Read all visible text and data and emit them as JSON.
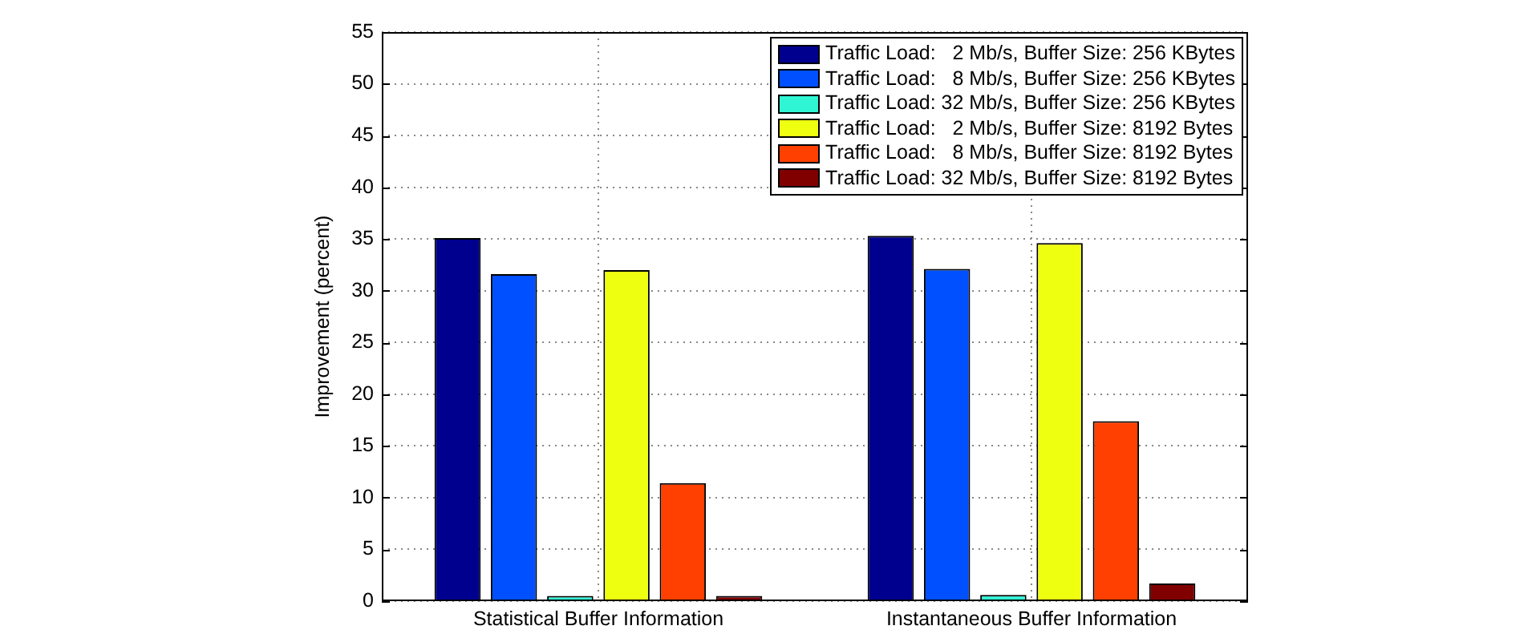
{
  "chart_data": {
    "type": "bar",
    "ylabel": "Improvement (percent)",
    "categories": [
      "Statistical Buffer Information",
      "Instantaneous Buffer Information"
    ],
    "series": [
      {
        "name": "Traffic Load:   2 Mb/s, Buffer Size: 256 KBytes",
        "color": "#00008f",
        "values": [
          35.1,
          35.3
        ]
      },
      {
        "name": "Traffic Load:   8 Mb/s, Buffer Size: 256 KBytes",
        "color": "#0050ff",
        "values": [
          31.6,
          32.1
        ]
      },
      {
        "name": "Traffic Load: 32 Mb/s, Buffer Size: 256 KBytes",
        "color": "#30f5d5",
        "values": [
          0.5,
          0.6
        ]
      },
      {
        "name": "Traffic Load:   2 Mb/s, Buffer Size: 8192 Bytes",
        "color": "#efff10",
        "values": [
          32.0,
          34.6
        ]
      },
      {
        "name": "Traffic Load:   8 Mb/s, Buffer Size: 8192 Bytes",
        "color": "#ff4000",
        "values": [
          11.4,
          17.4
        ]
      },
      {
        "name": "Traffic Load: 32 Mb/s, Buffer Size: 8192 Bytes",
        "color": "#800000",
        "values": [
          0.5,
          1.7
        ]
      }
    ],
    "ylim": [
      0,
      55
    ],
    "yticks": [
      0,
      5,
      10,
      15,
      20,
      25,
      30,
      35,
      40,
      45,
      50,
      55
    ],
    "grid": true,
    "legend": "top right"
  }
}
